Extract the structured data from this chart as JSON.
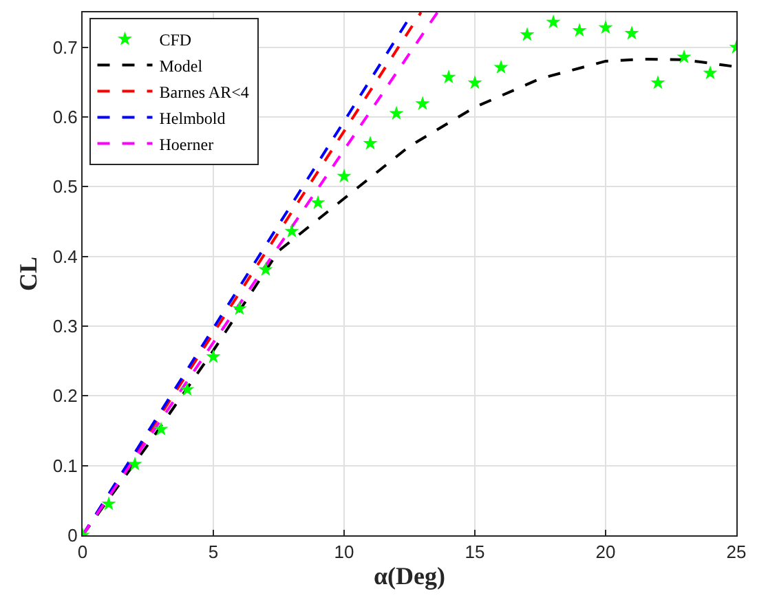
{
  "chart_data": {
    "type": "line",
    "xlabel": "α(Deg)",
    "ylabel": "CL",
    "xlim": [
      0,
      25
    ],
    "ylim": [
      0,
      0.75
    ],
    "xticks": [
      0,
      5,
      10,
      15,
      20,
      25
    ],
    "yticks": [
      0,
      0.1,
      0.2,
      0.3,
      0.4,
      0.5,
      0.6,
      0.7
    ],
    "grid": true,
    "legend": "top left",
    "series": [
      {
        "name": "CFD",
        "type": "scatter",
        "marker": "star",
        "color": "#00ff00",
        "x": [
          0,
          1,
          2,
          3,
          4,
          5,
          6,
          7,
          8,
          9,
          10,
          11,
          12,
          13,
          14,
          15,
          16,
          17,
          18,
          19,
          20,
          21,
          22,
          23,
          24,
          25
        ],
        "values": [
          0,
          0.045,
          0.102,
          0.152,
          0.209,
          0.256,
          0.325,
          0.381,
          0.436,
          0.477,
          0.515,
          0.562,
          0.605,
          0.619,
          0.657,
          0.649,
          0.671,
          0.718,
          0.736,
          0.724,
          0.728,
          0.72,
          0.649,
          0.686,
          0.663,
          0.7
        ]
      },
      {
        "name": "Model",
        "line_style": "dashed",
        "color": "#000000",
        "x": [
          0,
          2.5,
          5,
          7.5,
          10,
          12.5,
          15,
          17.5,
          20,
          21.5,
          23,
          25
        ],
        "values": [
          0,
          0.13,
          0.265,
          0.408,
          0.483,
          0.558,
          0.614,
          0.655,
          0.68,
          0.683,
          0.682,
          0.672
        ]
      },
      {
        "name": "Barnes AR<4",
        "line_style": "dashed",
        "color": "#ff0000",
        "x": [
          0,
          12.94
        ],
        "values": [
          0,
          0.75
        ]
      },
      {
        "name": "Helmbold",
        "line_style": "dashed",
        "color": "#0000ff",
        "x": [
          0,
          12.63
        ],
        "values": [
          0,
          0.75
        ]
      },
      {
        "name": "Hoerner",
        "line_style": "dashed",
        "color": "#ff00ff",
        "x": [
          0,
          13.57
        ],
        "values": [
          0,
          0.75
        ]
      }
    ]
  }
}
